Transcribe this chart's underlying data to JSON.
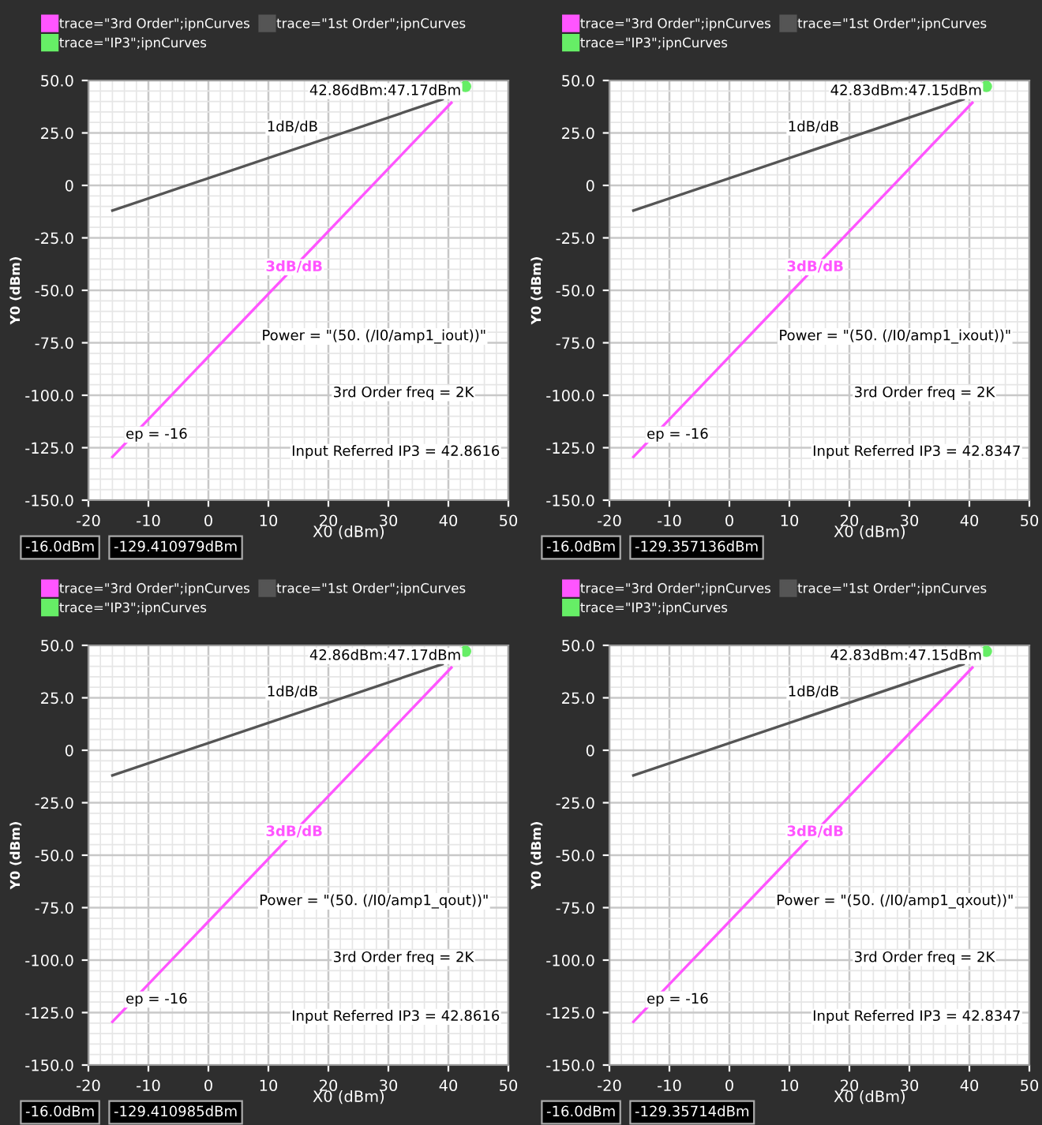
{
  "chart_data": [
    {
      "type": "line",
      "xlabel": "X0 (dBm)",
      "ylabel": "Y0 (dBm)",
      "xlim": [
        -20,
        50
      ],
      "ylim": [
        -150,
        50
      ],
      "xticks": [
        -20,
        -10,
        0,
        10,
        20,
        30,
        40,
        50
      ],
      "yticks": [
        {
          "value": 50,
          "label": "50.0"
        },
        {
          "value": 25,
          "label": "25.0"
        },
        0,
        {
          "value": -25,
          "label": "-25.0"
        },
        {
          "value": -50,
          "label": "-50.0"
        },
        {
          "value": -75,
          "label": "-75.0"
        },
        {
          "value": -100,
          "label": "-100.0"
        },
        {
          "value": -125,
          "label": "-125.0"
        },
        {
          "value": -150,
          "label": "-150.0"
        }
      ],
      "grid": true,
      "legend": "top left",
      "series": [
        {
          "name": "trace=\"3rd Order\";ipnCurves",
          "color": "#ff55ff",
          "x": [
            -16,
            40.5
          ],
          "values": [
            -129.4,
            39.4
          ]
        },
        {
          "name": "trace=\"1st Order\";ipnCurves",
          "color": "#555555",
          "x": [
            -16,
            39
          ],
          "values": [
            -12,
            41
          ]
        },
        {
          "name": "trace=\"IP3\";ipnCurves",
          "type": "scatter",
          "marker": "circle",
          "color": "#66ee66",
          "x": [
            42.86
          ],
          "values": [
            47.17
          ]
        }
      ],
      "annotations": [
        {
          "text": "42.86dBm:47.17dBm",
          "x": 42.86,
          "y": 47.17
        },
        {
          "text": "1dB/dB",
          "x": 14,
          "y": 17
        },
        {
          "text": "ep = -16",
          "x": -16,
          "y": -129.4
        },
        "3dB/dB",
        "Power = \"(50. (/I0/amp1_iout))\"",
        "3rd Order freq = 2K",
        "Input Referred IP3 = 42.8616",
        "-16.0dBm",
        "-129.410979dBm"
      ]
    },
    {
      "type": "line",
      "xlabel": "X0 (dBm)",
      "ylabel": "Y0 (dBm)",
      "xlim": [
        -20,
        50
      ],
      "ylim": [
        -150,
        50
      ],
      "xticks": [
        -20,
        -10,
        0,
        10,
        20,
        30,
        40,
        50
      ],
      "yticks": [
        {
          "value": 50,
          "label": "50.0"
        },
        {
          "value": 25,
          "label": "25.0"
        },
        0,
        {
          "value": -25,
          "label": "-25.0"
        },
        {
          "value": -50,
          "label": "-50.0"
        },
        {
          "value": -75,
          "label": "-75.0"
        },
        {
          "value": -100,
          "label": "-100.0"
        },
        {
          "value": -125,
          "label": "-125.0"
        },
        {
          "value": -150,
          "label": "-150.0"
        }
      ],
      "grid": true,
      "legend": "top left",
      "series": [
        {
          "name": "trace=\"3rd Order\";ipnCurves",
          "color": "#ff55ff",
          "x": [
            -16,
            40.5
          ],
          "values": [
            -129.4,
            39.4
          ]
        },
        {
          "name": "trace=\"1st Order\";ipnCurves",
          "color": "#555555",
          "x": [
            -16,
            39
          ],
          "values": [
            -12,
            41
          ]
        },
        {
          "name": "trace=\"IP3\";ipnCurves",
          "type": "scatter",
          "marker": "circle",
          "color": "#66ee66",
          "x": [
            42.83
          ],
          "values": [
            47.15
          ]
        }
      ],
      "annotations": [
        {
          "text": "42.83dBm:47.15dBm",
          "x": 42.83,
          "y": 47.15
        },
        {
          "text": "1dB/dB",
          "x": 14,
          "y": 17
        },
        {
          "text": "ep = -16",
          "x": -16,
          "y": -129.4
        },
        "3dB/dB",
        "Power = \"(50. (/I0/amp1_ixout))\"",
        "3rd Order freq = 2K",
        "Input Referred IP3 = 42.8347",
        "-16.0dBm",
        "-129.357136dBm"
      ]
    },
    {
      "type": "line",
      "xlabel": "X0 (dBm)",
      "ylabel": "Y0 (dBm)",
      "xlim": [
        -20,
        50
      ],
      "ylim": [
        -150,
        50
      ],
      "xticks": [
        -20,
        -10,
        0,
        10,
        20,
        30,
        40,
        50
      ],
      "yticks": [
        {
          "value": 50,
          "label": "50.0"
        },
        {
          "value": 25,
          "label": "25.0"
        },
        0,
        {
          "value": -25,
          "label": "-25.0"
        },
        {
          "value": -50,
          "label": "-50.0"
        },
        {
          "value": -75,
          "label": "-75.0"
        },
        {
          "value": -100,
          "label": "-100.0"
        },
        {
          "value": -125,
          "label": "-125.0"
        },
        {
          "value": -150,
          "label": "-150.0"
        }
      ],
      "grid": true,
      "legend": "top left",
      "series": [
        {
          "name": "trace=\"3rd Order\";ipnCurves",
          "color": "#ff55ff",
          "x": [
            -16,
            40.5
          ],
          "values": [
            -129.4,
            39.4
          ]
        },
        {
          "name": "trace=\"1st Order\";ipnCurves",
          "color": "#555555",
          "x": [
            -16,
            39
          ],
          "values": [
            -12,
            41
          ]
        },
        {
          "name": "trace=\"IP3\";ipnCurves",
          "type": "scatter",
          "marker": "circle",
          "color": "#66ee66",
          "x": [
            42.86
          ],
          "values": [
            47.17
          ]
        }
      ],
      "annotations": [
        {
          "text": "42.86dBm:47.17dBm",
          "x": 42.86,
          "y": 47.17
        },
        {
          "text": "1dB/dB",
          "x": 14,
          "y": 17
        },
        {
          "text": "ep = -16",
          "x": -16,
          "y": -129.4
        },
        "3dB/dB",
        "Power = \"(50. (/I0/amp1_qout))\"",
        "3rd Order freq = 2K",
        "Input Referred IP3 = 42.8616",
        "-16.0dBm",
        "-129.410985dBm"
      ]
    },
    {
      "type": "line",
      "xlabel": "X0 (dBm)",
      "ylabel": "Y0 (dBm)",
      "xlim": [
        -20,
        50
      ],
      "ylim": [
        -150,
        50
      ],
      "xticks": [
        -20,
        -10,
        0,
        10,
        20,
        30,
        40,
        50
      ],
      "yticks": [
        {
          "value": 50,
          "label": "50.0"
        },
        {
          "value": 25,
          "label": "25.0"
        },
        0,
        {
          "value": -25,
          "label": "-25.0"
        },
        {
          "value": -50,
          "label": "-50.0"
        },
        {
          "value": -75,
          "label": "-75.0"
        },
        {
          "value": -100,
          "label": "-100.0"
        },
        {
          "value": -125,
          "label": "-125.0"
        },
        {
          "value": -150,
          "label": "-150.0"
        }
      ],
      "grid": true,
      "legend": "top left",
      "series": [
        {
          "name": "trace=\"3rd Order\";ipnCurves",
          "color": "#ff55ff",
          "x": [
            -16,
            40.5
          ],
          "values": [
            -129.4,
            39.4
          ]
        },
        {
          "name": "trace=\"1st Order\";ipnCurves",
          "color": "#555555",
          "x": [
            -16,
            39
          ],
          "values": [
            -12,
            41
          ]
        },
        {
          "name": "trace=\"IP3\";ipnCurves",
          "type": "scatter",
          "marker": "circle",
          "color": "#66ee66",
          "x": [
            42.83
          ],
          "values": [
            47.15
          ]
        }
      ],
      "annotations": [
        {
          "text": "42.83dBm:47.15dBm",
          "x": 42.83,
          "y": 47.15
        },
        {
          "text": "1dB/dB",
          "x": 14,
          "y": 17
        },
        {
          "text": "ep = -16",
          "x": -16,
          "y": -129.4
        },
        "3dB/dB",
        "Power = \"(50. (/I0/amp1_qxout))\"",
        "3rd Order freq = 2K",
        "Input Referred IP3 = 42.8347",
        "-16.0dBm",
        "-129.35714dBm"
      ]
    }
  ]
}
